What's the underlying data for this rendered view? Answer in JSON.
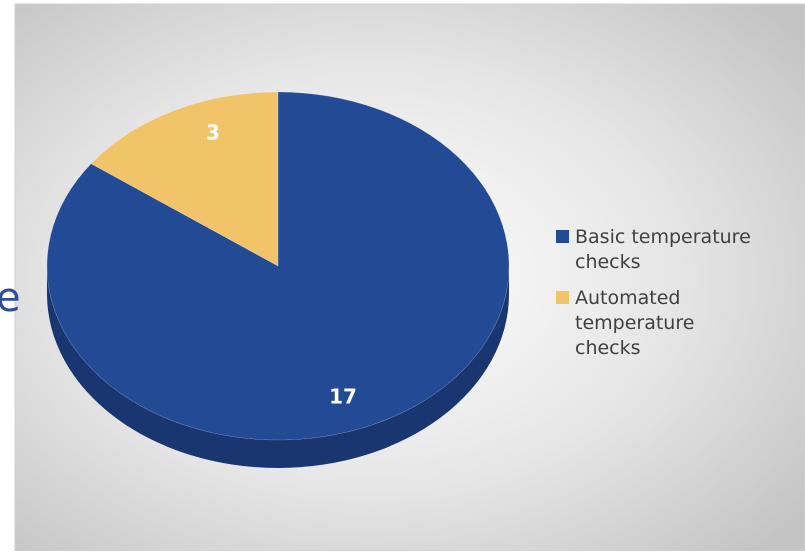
{
  "background_text": "e",
  "chart_data": {
    "type": "pie3d",
    "categories": [
      "Basic temperature checks",
      "Automated temperature checks"
    ],
    "values": [
      17,
      3
    ],
    "colors": [
      "#234a95",
      "#f2c46a"
    ],
    "side_colors": [
      "#1a3670",
      "#b8924c"
    ],
    "legend": "right"
  }
}
